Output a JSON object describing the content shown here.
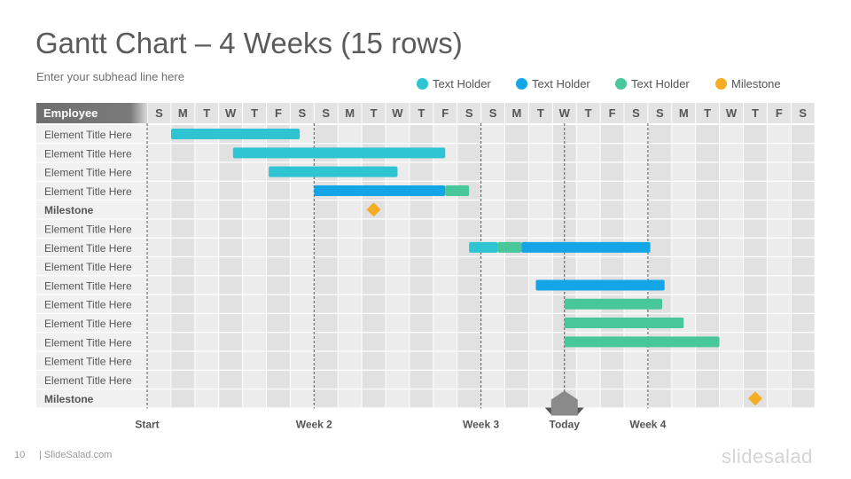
{
  "slide": {
    "title": "Gantt Chart – 4 Weeks (15 rows)",
    "subhead": "Enter your subhead  line here",
    "page_number": "10",
    "footer_brand": "| SlideSalad.com",
    "logo_text": "slidesalad"
  },
  "legend": [
    {
      "label": "Text Holder",
      "color": "#2ec4d2",
      "shape": "circle"
    },
    {
      "label": "Text Holder",
      "color": "#14a5e6",
      "shape": "circle"
    },
    {
      "label": "Text Holder",
      "color": "#48c79a",
      "shape": "circle"
    },
    {
      "label": "Milestone",
      "color": "#f5ae24",
      "shape": "circle"
    }
  ],
  "chart_data": {
    "type": "gantt",
    "header_label": "Employee",
    "days": [
      "S",
      "M",
      "T",
      "W",
      "T",
      "F",
      "S",
      "S",
      "M",
      "T",
      "W",
      "T",
      "F",
      "S",
      "S",
      "M",
      "T",
      "W",
      "T",
      "F",
      "S",
      "S",
      "M",
      "T",
      "W",
      "T",
      "F",
      "S"
    ],
    "rows": [
      {
        "label": "Element Title Here",
        "bold": false,
        "bars": [
          {
            "start": 1,
            "end": 6.4,
            "color": "#2ec4d2"
          }
        ]
      },
      {
        "label": "Element Title Here",
        "bold": false,
        "bars": [
          {
            "start": 3.6,
            "end": 12.5,
            "color": "#2ec4d2"
          }
        ]
      },
      {
        "label": "Element Title Here",
        "bold": false,
        "bars": [
          {
            "start": 5.1,
            "end": 10.5,
            "color": "#2ec4d2"
          }
        ]
      },
      {
        "label": "Element Title Here",
        "bold": false,
        "bars": [
          {
            "start": 7,
            "end": 12.5,
            "color": "#14a5e6"
          },
          {
            "start": 12.5,
            "end": 13.5,
            "color": "#48c79a"
          }
        ]
      },
      {
        "label": "Milestone",
        "bold": true,
        "bars": [],
        "milestones": [
          {
            "at": 9.5,
            "color": "#f5ae24"
          }
        ]
      },
      {
        "label": "Element Title Here",
        "bold": false,
        "bars": []
      },
      {
        "label": "Element Title Here",
        "bold": false,
        "bars": [
          {
            "start": 13.5,
            "end": 14.7,
            "color": "#2ec4d2"
          },
          {
            "start": 14.7,
            "end": 15.7,
            "color": "#48c79a"
          },
          {
            "start": 15.7,
            "end": 21.1,
            "color": "#14a5e6"
          }
        ]
      },
      {
        "label": "Element Title Here",
        "bold": false,
        "bars": []
      },
      {
        "label": "Element Title Here",
        "bold": false,
        "bars": [
          {
            "start": 16.3,
            "end": 21.7,
            "color": "#14a5e6"
          }
        ]
      },
      {
        "label": "Element Title Here",
        "bold": false,
        "bars": [
          {
            "start": 17.5,
            "end": 21.6,
            "color": "#48c79a"
          }
        ]
      },
      {
        "label": "Element Title Here",
        "bold": false,
        "bars": [
          {
            "start": 17.5,
            "end": 22.5,
            "color": "#48c79a"
          }
        ]
      },
      {
        "label": "Element Title Here",
        "bold": false,
        "bars": [
          {
            "start": 17.5,
            "end": 24,
            "color": "#48c79a"
          }
        ]
      },
      {
        "label": "Element Title Here",
        "bold": false,
        "bars": []
      },
      {
        "label": "Element Title Here",
        "bold": false,
        "bars": []
      },
      {
        "label": "Milestone",
        "bold": true,
        "bars": [],
        "milestones": [
          {
            "at": 25.5,
            "color": "#f5ae24"
          }
        ]
      }
    ],
    "markers": [
      {
        "label": "Start",
        "at": 0
      },
      {
        "label": "Week 2",
        "at": 7
      },
      {
        "label": "Week 3",
        "at": 14
      },
      {
        "label": "Today",
        "at": 17.5,
        "today": true
      },
      {
        "label": "Week 4",
        "at": 21
      }
    ],
    "grid": true
  }
}
